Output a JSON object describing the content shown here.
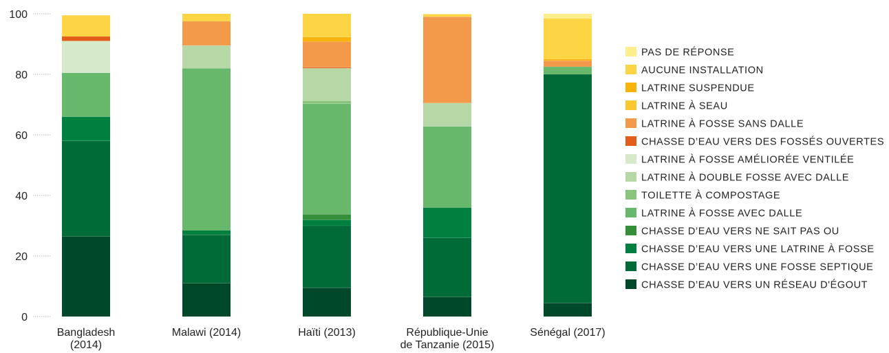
{
  "chart_data": {
    "type": "bar",
    "stacked": true,
    "title": "",
    "xlabel": "",
    "ylabel": "",
    "ylim": [
      0,
      100
    ],
    "yticks": [
      "0",
      "20",
      "40",
      "60",
      "80",
      "100"
    ],
    "legend_position": "right",
    "grid": false,
    "categories": [
      [
        "Bangladesh",
        "(2014)"
      ],
      [
        "Malawi (2014)"
      ],
      [
        "Haïti (2013)"
      ],
      [
        "République-Unie",
        "de Tanzanie (2015)"
      ],
      [
        "Sénégal (2017)"
      ]
    ],
    "series": [
      {
        "name": "CHASSE D’EAU VERS UN RÉSEAU D'ÉGOUT",
        "color": "#00482a",
        "values": [
          26.5,
          11,
          9.5,
          6.5,
          4.5
        ]
      },
      {
        "name": "CHASSE D’EAU VERS UNE FOSSE SEPTIQUE",
        "color": "#006b37",
        "values": [
          31.5,
          16,
          20.5,
          19.5,
          75.5
        ]
      },
      {
        "name": "CHASSE D’EAU VERS UNE LATRINE À FOSSE",
        "color": "#00803f",
        "values": [
          8,
          1.5,
          2,
          10,
          0
        ]
      },
      {
        "name": "CHASSE D’EAU VERS NE SAIT PAS OU",
        "color": "#338f38",
        "values": [
          0,
          0,
          1.8,
          0,
          0
        ]
      },
      {
        "name": "LATRINE À FOSSE AVEC DALLE",
        "color": "#68b86c",
        "values": [
          14.5,
          53.5,
          36.5,
          26.8,
          2.5
        ]
      },
      {
        "name": "TOILETTE À COMPOSTAGE",
        "color": "#8ac47c",
        "values": [
          0,
          0,
          1,
          0,
          0
        ]
      },
      {
        "name": "LATRINE À DOUBLE FOSSE AVEC DALLE",
        "color": "#b5d8a6",
        "values": [
          0,
          7.5,
          10.7,
          7.7,
          0
        ]
      },
      {
        "name": "LATRINE À FOSSE AMÉLIORÉE VENTILÉE",
        "color": "#d6e9c8",
        "values": [
          10.5,
          0,
          0,
          0,
          0
        ]
      },
      {
        "name": "CHASSE D’EAU VERS DES FOSSÉS OUVERTES",
        "color": "#e25c1a",
        "values": [
          1.5,
          0,
          0.3,
          0,
          0
        ]
      },
      {
        "name": "LATRINE À FOSSE SANS DALLE",
        "color": "#f39a4a",
        "values": [
          0,
          8,
          8.5,
          28.5,
          2
        ]
      },
      {
        "name": "LATRINE À SEAU",
        "color": "#fbc62e",
        "values": [
          0,
          0,
          0,
          0,
          0
        ]
      },
      {
        "name": "LATRINE SUSPENDUE",
        "color": "#f9b30a",
        "values": [
          0,
          0,
          1.5,
          0,
          0.5
        ]
      },
      {
        "name": "AUCUNE INSTALLATION",
        "color": "#fdd444",
        "values": [
          7,
          2.5,
          7.7,
          0.8,
          13.5
        ]
      },
      {
        "name": "PAS DE RÉPONSE",
        "color": "#fdee8c",
        "values": [
          0,
          0,
          0,
          0.2,
          1.5
        ]
      }
    ]
  }
}
